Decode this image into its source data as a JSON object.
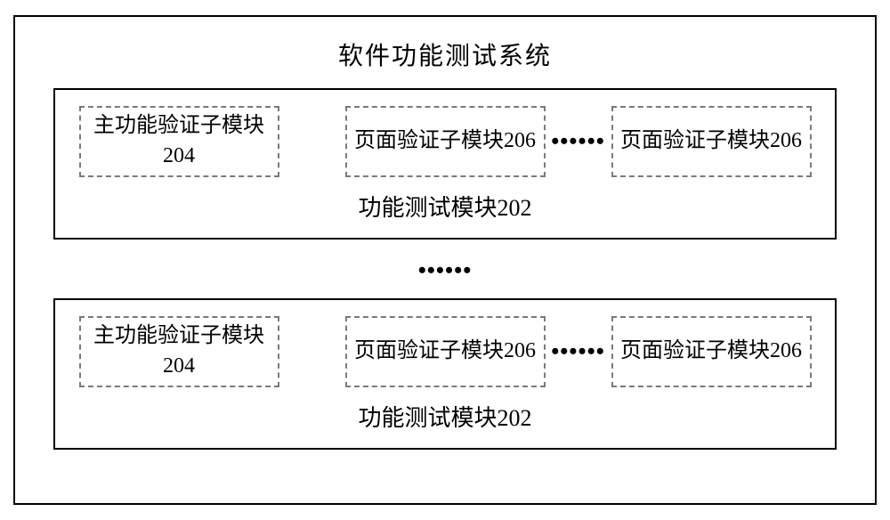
{
  "diagram": {
    "type": "block-diagram",
    "title": "软件功能测试系统",
    "title_fontsize": 28,
    "outer_border_color": "#000000",
    "outer_border_width": 2,
    "background_color": "#ffffff",
    "text_color": "#000000",
    "dashed_border_color": "#7a7a7a",
    "sub_fontsize": 24,
    "module_label_fontsize": 26,
    "ellipsis_glyph": "••••••",
    "modules": [
      {
        "label": "功能测试模块202",
        "subs": [
          {
            "text": "主功能验证子模块204"
          },
          {
            "text": "页面验证子模块206"
          },
          {
            "text": "页面验证子模块206"
          }
        ]
      },
      {
        "label": "功能测试模块202",
        "subs": [
          {
            "text": "主功能验证子模块204"
          },
          {
            "text": "页面验证子模块206"
          },
          {
            "text": "页面验证子模块206"
          }
        ]
      }
    ]
  }
}
